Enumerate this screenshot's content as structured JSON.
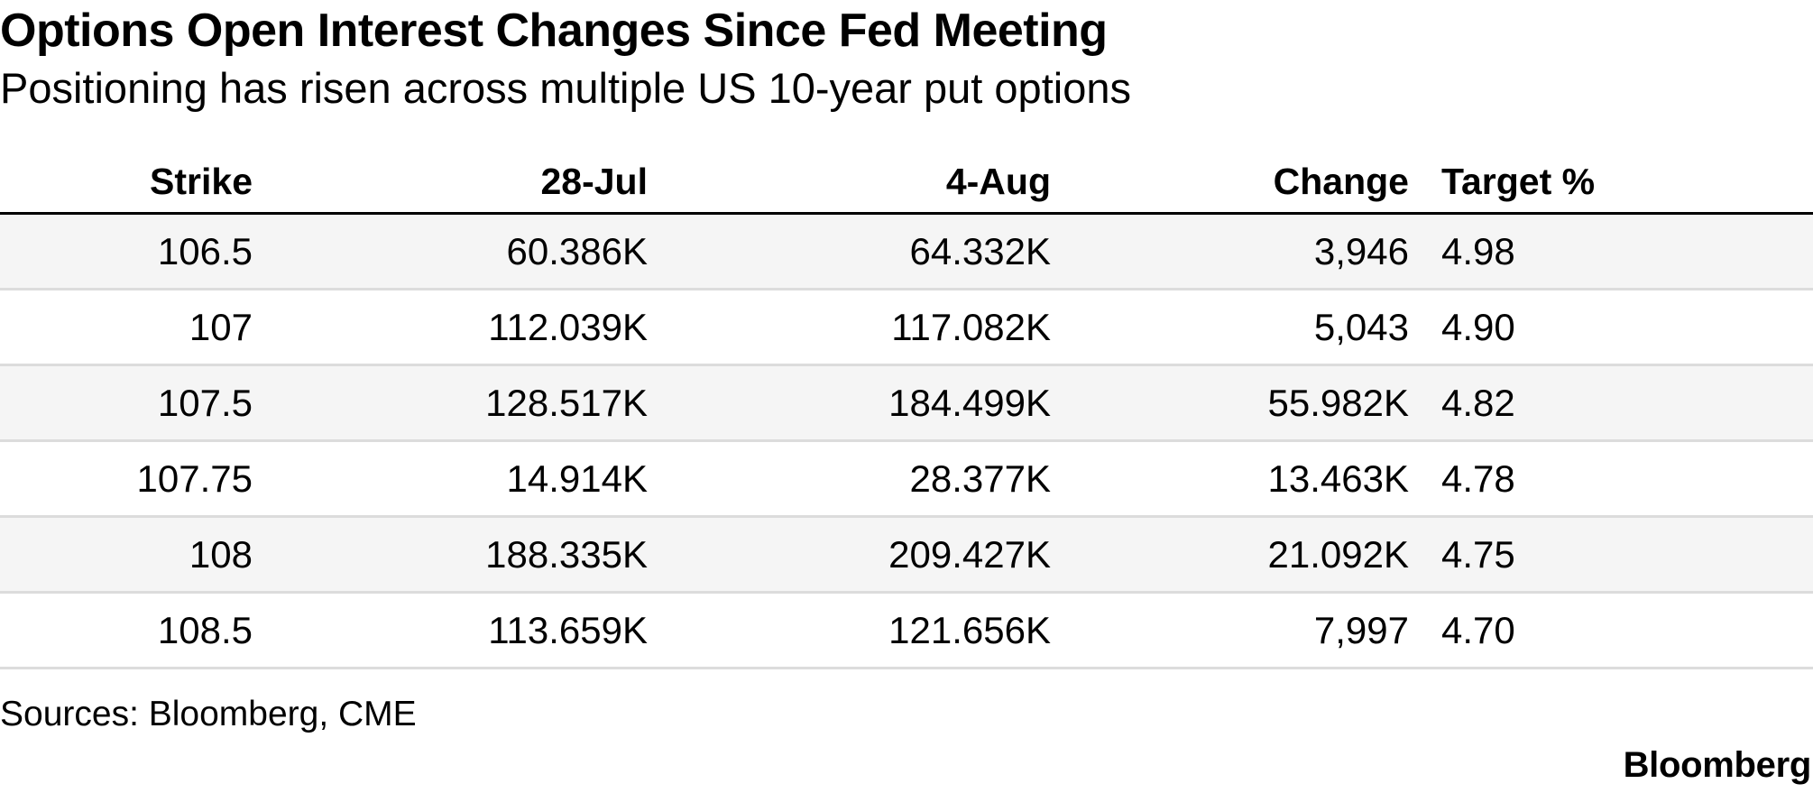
{
  "title": "Options Open Interest Changes Since Fed Meeting",
  "subtitle": "Positioning has risen across multiple US 10-year put options",
  "source": "Sources: Bloomberg, CME",
  "logo": "Bloomberg",
  "chart_data": {
    "type": "table",
    "title": "Options Open Interest Changes Since Fed Meeting",
    "subtitle": "Positioning has risen across multiple US 10-year put options",
    "columns": [
      "Strike",
      "28-Jul",
      "4-Aug",
      "Change",
      "Target %"
    ],
    "rows": [
      [
        "106.5",
        "60.386K",
        "64.332K",
        "3,946",
        "4.98"
      ],
      [
        "107",
        "112.039K",
        "117.082K",
        "5,043",
        "4.90"
      ],
      [
        "107.5",
        "128.517K",
        "184.499K",
        "55.982K",
        "4.82"
      ],
      [
        "107.75",
        "14.914K",
        "28.377K",
        "13.463K",
        "4.78"
      ],
      [
        "108",
        "188.335K",
        "209.427K",
        "21.092K",
        "4.75"
      ],
      [
        "108.5",
        "113.659K",
        "121.656K",
        "7,997",
        "4.70"
      ]
    ],
    "row_colors": [
      "#f5f5f5",
      "#ffffff"
    ],
    "source": "Sources: Bloomberg, CME"
  }
}
